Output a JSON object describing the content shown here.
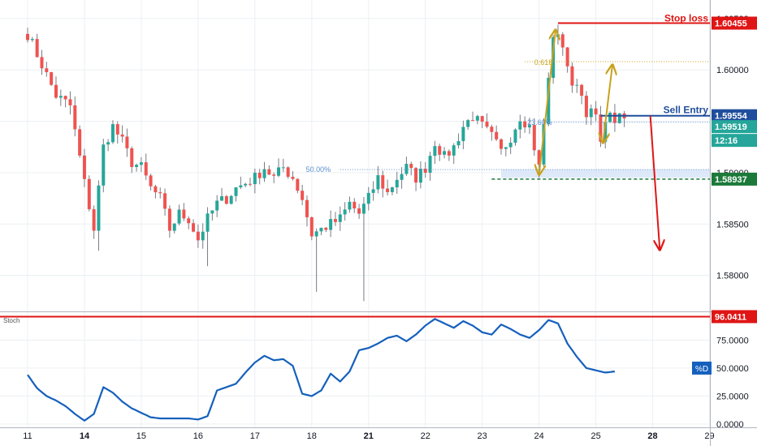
{
  "colors": {
    "bull": "#26a69a",
    "bear": "#ef5350",
    "wick": "#787b86",
    "stop": "#e01515",
    "entry": "#1f4e9c",
    "target": "#1b7a3a",
    "fib": "#c8a21e",
    "fib_blue": "#5b8fd1",
    "stoch": "#1560bd",
    "grid": "#eceff3",
    "axis_text": "#131722"
  },
  "chart_data": [
    {
      "type": "candlestick",
      "x_ticks": [
        {
          "label": "11",
          "bar": 0
        },
        {
          "label": "14",
          "bar": 12
        },
        {
          "label": "15",
          "bar": 24
        },
        {
          "label": "16",
          "bar": 36
        },
        {
          "label": "17",
          "bar": 48
        },
        {
          "label": "18",
          "bar": 60
        },
        {
          "label": "21",
          "bar": 72
        },
        {
          "label": "22",
          "bar": 84
        },
        {
          "label": "23",
          "bar": 96
        },
        {
          "label": "24",
          "bar": 108
        },
        {
          "label": "25",
          "bar": 120
        },
        {
          "label": "28",
          "bar": 132
        },
        {
          "label": "29",
          "bar": 144
        }
      ],
      "bold_ticks": [
        "14",
        "21",
        "28"
      ],
      "y_ticks": [
        "1.58000",
        "1.58500",
        "1.59000",
        "1.59500",
        "1.60000",
        "1.60500"
      ],
      "ylim": [
        1.5765,
        1.6068
      ],
      "price_anchors": [
        [
          0,
          1.6035
        ],
        [
          3,
          1.6005
        ],
        [
          6,
          1.5975
        ],
        [
          9,
          1.5965
        ],
        [
          12,
          1.589
        ],
        [
          14,
          1.5845
        ],
        [
          16,
          1.5925
        ],
        [
          18,
          1.5945
        ],
        [
          20,
          1.593
        ],
        [
          22,
          1.591
        ],
        [
          24,
          1.5905
        ],
        [
          26,
          1.5885
        ],
        [
          28,
          1.5875
        ],
        [
          30,
          1.5845
        ],
        [
          32,
          1.586
        ],
        [
          34,
          1.5855
        ],
        [
          36,
          1.5835
        ],
        [
          38,
          1.5855
        ],
        [
          40,
          1.587
        ],
        [
          42,
          1.5875
        ],
        [
          44,
          1.5885
        ],
        [
          46,
          1.589
        ],
        [
          48,
          1.5895
        ],
        [
          50,
          1.5905
        ],
        [
          52,
          1.5895
        ],
        [
          54,
          1.5905
        ],
        [
          56,
          1.5895
        ],
        [
          58,
          1.5875
        ],
        [
          60,
          1.584
        ],
        [
          62,
          1.5845
        ],
        [
          64,
          1.585
        ],
        [
          66,
          1.5855
        ],
        [
          68,
          1.587
        ],
        [
          70,
          1.586
        ],
        [
          72,
          1.5875
        ],
        [
          74,
          1.5895
        ],
        [
          76,
          1.588
        ],
        [
          78,
          1.5895
        ],
        [
          80,
          1.5905
        ],
        [
          82,
          1.5895
        ],
        [
          84,
          1.5905
        ],
        [
          86,
          1.593
        ],
        [
          88,
          1.5915
        ],
        [
          90,
          1.5925
        ],
        [
          92,
          1.5945
        ],
        [
          94,
          1.5955
        ],
        [
          96,
          1.5945
        ],
        [
          98,
          1.5935
        ],
        [
          100,
          1.592
        ],
        [
          102,
          1.5935
        ],
        [
          104,
          1.5955
        ],
        [
          106,
          1.5945
        ],
        [
          108,
          1.5905
        ],
        [
          110,
          1.599
        ],
        [
          111,
          1.6035
        ],
        [
          112,
          1.603
        ],
        [
          113,
          1.6025
        ],
        [
          114,
          1.6005
        ],
        [
          115,
          1.598
        ],
        [
          116,
          1.599
        ],
        [
          118,
          1.596
        ],
        [
          120,
          1.5955
        ],
        [
          121,
          1.5925
        ],
        [
          122,
          1.5955
        ],
        [
          124,
          1.5952
        ],
        [
          126,
          1.5952
        ]
      ],
      "lows": [
        {
          "bar": 15,
          "price": 1.5824
        },
        {
          "bar": 38,
          "price": 1.5809
        },
        {
          "bar": 61,
          "price": 1.5784
        },
        {
          "bar": 71,
          "price": 1.5775
        },
        {
          "bar": 108,
          "price": 1.5895
        },
        {
          "bar": 121,
          "price": 1.5925
        }
      ],
      "highs": [
        {
          "bar": 112,
          "price": 1.6044
        }
      ],
      "levels": {
        "stop_loss": {
          "label": "Stop loss",
          "price": 1.60455,
          "tag": "1.60455"
        },
        "sell_entry": {
          "label": "Sell Entry",
          "price": 1.59554,
          "tag": "1.59554"
        },
        "last_price": {
          "price": 1.59519,
          "tag": "1.59519",
          "timer": "12:16"
        },
        "target": {
          "price": 1.58937,
          "tag": "1.58937"
        }
      },
      "fib_labels": {
        "f618": "0.618",
        "f236": "23.60%",
        "f500": "50.00%"
      },
      "fib_levels": {
        "f618": 1.6008,
        "f236": 1.5949,
        "f500": 1.5903
      },
      "zone": {
        "from": 1.5903,
        "to": 1.5895
      }
    },
    {
      "type": "line",
      "name": "Stoch",
      "legend": "%D",
      "y_ticks": [
        "0.0000",
        "25.0000",
        "50.0000",
        "75.0000"
      ],
      "ylim": [
        -3,
        100
      ],
      "overbought": {
        "value": 96.0411,
        "tag": "96.0411"
      },
      "anchors": [
        [
          0,
          44
        ],
        [
          2,
          32
        ],
        [
          4,
          25
        ],
        [
          6,
          21
        ],
        [
          8,
          16
        ],
        [
          10,
          9
        ],
        [
          12,
          3
        ],
        [
          14,
          9
        ],
        [
          16,
          33
        ],
        [
          18,
          28
        ],
        [
          20,
          20
        ],
        [
          22,
          14
        ],
        [
          24,
          10
        ],
        [
          26,
          6
        ],
        [
          28,
          5
        ],
        [
          30,
          5
        ],
        [
          32,
          5
        ],
        [
          34,
          5
        ],
        [
          36,
          4
        ],
        [
          38,
          7
        ],
        [
          40,
          30
        ],
        [
          42,
          33
        ],
        [
          44,
          36
        ],
        [
          46,
          46
        ],
        [
          48,
          55
        ],
        [
          50,
          61
        ],
        [
          52,
          57
        ],
        [
          54,
          58
        ],
        [
          56,
          52
        ],
        [
          58,
          27
        ],
        [
          60,
          25
        ],
        [
          62,
          30
        ],
        [
          64,
          45
        ],
        [
          66,
          38
        ],
        [
          68,
          47
        ],
        [
          70,
          66
        ],
        [
          72,
          68
        ],
        [
          74,
          72
        ],
        [
          76,
          77
        ],
        [
          78,
          79
        ],
        [
          80,
          74
        ],
        [
          82,
          80
        ],
        [
          84,
          88
        ],
        [
          86,
          94
        ],
        [
          88,
          90
        ],
        [
          90,
          86
        ],
        [
          92,
          92
        ],
        [
          94,
          88
        ],
        [
          96,
          82
        ],
        [
          98,
          80
        ],
        [
          100,
          89
        ],
        [
          102,
          85
        ],
        [
          104,
          80
        ],
        [
          106,
          77
        ],
        [
          108,
          84
        ],
        [
          110,
          93
        ],
        [
          112,
          90
        ],
        [
          114,
          72
        ],
        [
          116,
          60
        ],
        [
          118,
          50
        ],
        [
          120,
          48
        ],
        [
          122,
          46
        ],
        [
          124,
          47
        ]
      ]
    }
  ]
}
